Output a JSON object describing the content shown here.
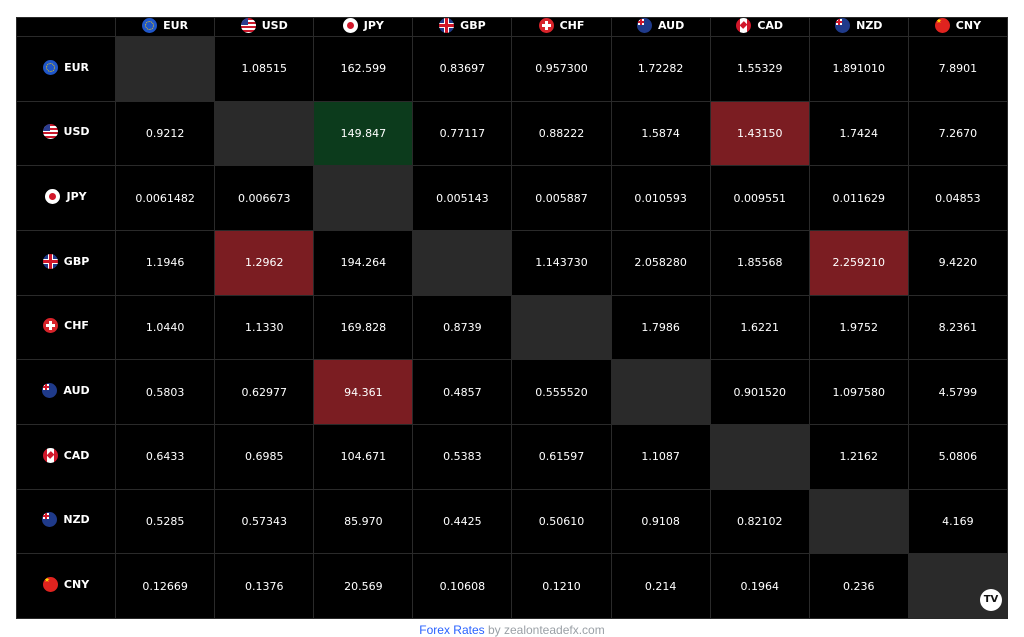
{
  "currencies": [
    {
      "code": "EUR",
      "flag": "eu-flag-icon"
    },
    {
      "code": "USD",
      "flag": "us-flag-icon"
    },
    {
      "code": "JPY",
      "flag": "jp-flag-icon"
    },
    {
      "code": "GBP",
      "flag": "gb-flag-icon"
    },
    {
      "code": "CHF",
      "flag": "ch-flag-icon"
    },
    {
      "code": "AUD",
      "flag": "au-flag-icon"
    },
    {
      "code": "CAD",
      "flag": "ca-flag-icon"
    },
    {
      "code": "NZD",
      "flag": "nz-flag-icon"
    },
    {
      "code": "CNY",
      "flag": "cn-flag-icon"
    }
  ],
  "rows": [
    [
      "",
      "1.08515",
      "162.599",
      "0.83697",
      "0.957300",
      "1.72282",
      "1.55329",
      "1.891010",
      "7.8901"
    ],
    [
      "0.9212",
      "",
      "149.847",
      "0.77117",
      "0.88222",
      "1.5874",
      "1.43150",
      "1.7424",
      "7.2670"
    ],
    [
      "0.0061482",
      "0.006673",
      "",
      "0.005143",
      "0.005887",
      "0.010593",
      "0.009551",
      "0.011629",
      "0.04853"
    ],
    [
      "1.1946",
      "1.2962",
      "194.264",
      "",
      "1.143730",
      "2.058280",
      "1.85568",
      "2.259210",
      "9.4220"
    ],
    [
      "1.0440",
      "1.1330",
      "169.828",
      "0.8739",
      "",
      "1.7986",
      "1.6221",
      "1.9752",
      "8.2361"
    ],
    [
      "0.5803",
      "0.62977",
      "94.361",
      "0.4857",
      "0.555520",
      "",
      "0.901520",
      "1.097580",
      "4.5799"
    ],
    [
      "0.6433",
      "0.6985",
      "104.671",
      "0.5383",
      "0.61597",
      "1.1087",
      "",
      "1.2162",
      "5.0806"
    ],
    [
      "0.5285",
      "0.57343",
      "85.970",
      "0.4425",
      "0.50610",
      "0.9108",
      "0.82102",
      "",
      "4.169"
    ],
    [
      "0.12669",
      "0.1376",
      "20.569",
      "0.10608",
      "0.1210",
      "0.214",
      "0.1964",
      "0.236",
      ""
    ]
  ],
  "cell_states": [
    [
      "diag",
      "",
      "",
      "",
      "",
      "",
      "",
      "",
      ""
    ],
    [
      "",
      "diag",
      "up",
      "",
      "",
      "",
      "down",
      "",
      ""
    ],
    [
      "",
      "",
      "diag",
      "",
      "",
      "",
      "",
      "",
      ""
    ],
    [
      "",
      "down",
      "",
      "diag",
      "",
      "",
      "",
      "down",
      ""
    ],
    [
      "",
      "",
      "",
      "",
      "diag",
      "",
      "",
      "",
      ""
    ],
    [
      "",
      "",
      "down",
      "",
      "",
      "diag",
      "",
      "",
      ""
    ],
    [
      "",
      "",
      "",
      "",
      "",
      "",
      "diag",
      "",
      ""
    ],
    [
      "",
      "",
      "",
      "",
      "",
      "",
      "",
      "diag",
      ""
    ],
    [
      "",
      "",
      "",
      "",
      "",
      "",
      "",
      "",
      "diag"
    ]
  ],
  "colors": {
    "background": "#000000",
    "diagonal": "#2a2a2a",
    "up": "#0c3b1c",
    "down": "#7b1d22",
    "link": "#2962ff"
  },
  "logo": {
    "text": "TV",
    "icon": "tradingview-logo-icon"
  },
  "footer": {
    "link": "Forex Rates",
    "suffix": " by zealonteadefx.com"
  }
}
